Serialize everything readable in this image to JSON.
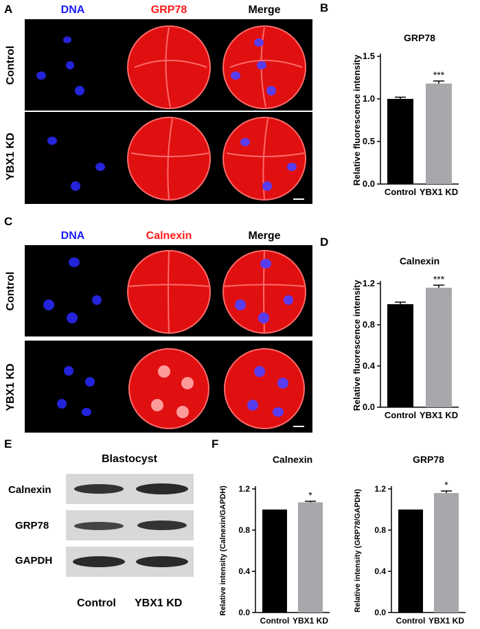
{
  "panel_labels": {
    "A": "A",
    "B": "B",
    "C": "C",
    "D": "D",
    "E": "E",
    "F": "F"
  },
  "panelA": {
    "col_headers": [
      "DNA",
      "GRP78",
      "Merge"
    ],
    "row_labels": [
      "Control",
      "YBX1 KD"
    ],
    "header_colors": [
      "#1a1aff",
      "#ff1a1a",
      "#000000"
    ]
  },
  "panelC": {
    "col_headers": [
      "DNA",
      "Calnexin",
      "Merge"
    ],
    "row_labels": [
      "Control",
      "YBX1 KD"
    ],
    "header_colors": [
      "#1a1aff",
      "#ff1a1a",
      "#000000"
    ]
  },
  "panelE": {
    "title": "Blastocyst",
    "rows": [
      "Calnexin",
      "GRP78",
      "GAPDH"
    ],
    "lanes": [
      "Control",
      "YBX1 KD"
    ]
  },
  "colors": {
    "control_bar": "#000000",
    "kd_bar": "#a8a8ac",
    "dna": "#2a2aff",
    "red": "#ff1010"
  },
  "chart_data": [
    {
      "id": "B",
      "type": "bar",
      "title": "GRP78",
      "ylabel": "Relative fluorescence intensity",
      "categories": [
        "Control",
        "YBX1 KD"
      ],
      "values": [
        1.0,
        1.18
      ],
      "errors": [
        0.02,
        0.03
      ],
      "ylim": [
        0.0,
        1.5
      ],
      "yticks": [
        "0.0",
        "0.5",
        "1.0",
        "1.5"
      ],
      "significance": [
        "",
        "***"
      ]
    },
    {
      "id": "D",
      "type": "bar",
      "title": "Calnexin",
      "ylabel": "Relative fluorescence intensity",
      "categories": [
        "Control",
        "YBX1 KD"
      ],
      "values": [
        1.0,
        1.16
      ],
      "errors": [
        0.02,
        0.025
      ],
      "ylim": [
        0.0,
        1.2
      ],
      "yticks": [
        "0.0",
        "0.4",
        "0.8",
        "1.2"
      ],
      "significance": [
        "",
        "***"
      ]
    },
    {
      "id": "F1",
      "type": "bar",
      "title": "Calnexin",
      "ylabel": "Relative intensity (Calnexin/GAPDH)",
      "categories": [
        "Control",
        "YBX1 KD"
      ],
      "values": [
        1.0,
        1.07
      ],
      "errors": [
        0.0,
        0.01
      ],
      "ylim": [
        0.0,
        1.2
      ],
      "yticks": [
        "0.0",
        "0.4",
        "0.8",
        "1.2"
      ],
      "significance": [
        "",
        "*"
      ]
    },
    {
      "id": "F2",
      "type": "bar",
      "title": "GRP78",
      "ylabel": "Relative intensity (GRP78/GAPDH)",
      "categories": [
        "Control",
        "YBX1 KD"
      ],
      "values": [
        1.0,
        1.16
      ],
      "errors": [
        0.0,
        0.02
      ],
      "ylim": [
        0.0,
        1.2
      ],
      "yticks": [
        "0.0",
        "0.4",
        "0.8",
        "1.2"
      ],
      "significance": [
        "",
        "*"
      ]
    }
  ]
}
